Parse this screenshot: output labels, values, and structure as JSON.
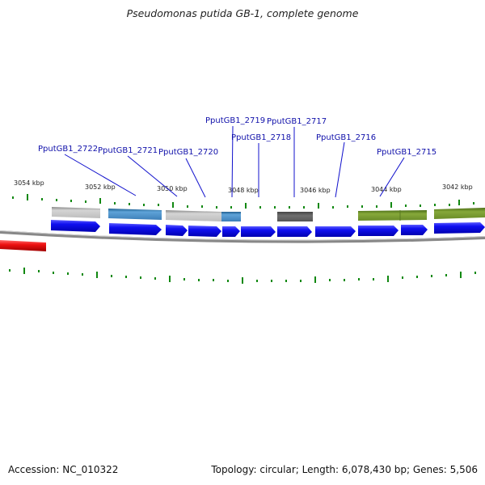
{
  "title": "Pseudomonas putida GB-1, complete genome",
  "accession": "Accession: NC_010322",
  "summary": "Topology: circular; Length: 6,078,430 bp; Genes: 5,506",
  "kbp_labels": [
    "3054 kbp",
    "3052 kbp",
    "3050 kbp",
    "3048 kbp",
    "3046 kbp",
    "3044 kbp",
    "3042 kbp"
  ],
  "gene_labels": [
    "PputGB1_2722",
    "PputGB1_2721",
    "PputGB1_2720",
    "PputGB1_2719",
    "PputGB1_2718",
    "PputGB1_2717",
    "PputGB1_2716",
    "PputGB1_2715"
  ],
  "colors": {
    "gene_arrow": "#0000ee",
    "feature_red": "#ee1111",
    "tick_green": "#118811",
    "backbone": "#888888",
    "label_text": "#1010aa"
  }
}
